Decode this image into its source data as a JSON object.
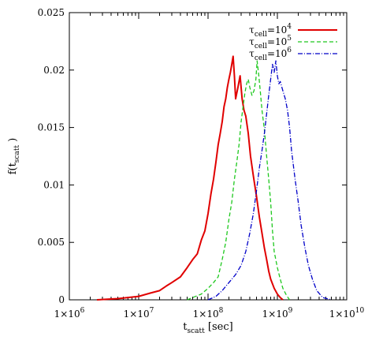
{
  "chart_data": {
    "type": "line",
    "title": "",
    "xlabel": {
      "main": "t",
      "sub": "scatt",
      "rest": " [sec]"
    },
    "ylabel": {
      "main": "f(t",
      "sub": "scatt",
      "rest": " )"
    },
    "x_scale": "log",
    "xlim": [
      1000000,
      10000000000
    ],
    "ylim": [
      0,
      0.025
    ],
    "grid": false,
    "legend_position": "top-right",
    "x_ticks": [
      {
        "base": "1×10",
        "exp": "6"
      },
      {
        "base": "1×10",
        "exp": "7"
      },
      {
        "base": "1×10",
        "exp": "8"
      },
      {
        "base": "1×10",
        "exp": "9"
      },
      {
        "base": "1×10",
        "exp": "10"
      }
    ],
    "y_ticks": [
      "0",
      "0.005",
      "0.01",
      "0.015",
      "0.02",
      "0.025"
    ],
    "y_tick_values": [
      0,
      0.005,
      0.01,
      0.015,
      0.02,
      0.025
    ],
    "series": [
      {
        "name": "τcell=10^4",
        "legend": {
          "tau": "τ",
          "sub": "cell",
          "eq": "=10",
          "exp": "4"
        },
        "color": "#e00000",
        "dash": "",
        "points": [
          [
            2500000,
            0.0
          ],
          [
            5000000,
            0.0001
          ],
          [
            10000000,
            0.0003
          ],
          [
            15000000,
            0.0006
          ],
          [
            20000000,
            0.0008
          ],
          [
            25000000,
            0.0012
          ],
          [
            30000000,
            0.0015
          ],
          [
            40000000,
            0.002
          ],
          [
            50000000,
            0.0028
          ],
          [
            60000000,
            0.0035
          ],
          [
            70000000,
            0.004
          ],
          [
            80000000,
            0.0052
          ],
          [
            90000000,
            0.006
          ],
          [
            100000000,
            0.0075
          ],
          [
            110000000,
            0.0092
          ],
          [
            120000000,
            0.0105
          ],
          [
            130000000,
            0.012
          ],
          [
            140000000,
            0.0135
          ],
          [
            150000000,
            0.0145
          ],
          [
            160000000,
            0.0155
          ],
          [
            170000000,
            0.0168
          ],
          [
            180000000,
            0.0175
          ],
          [
            190000000,
            0.0185
          ],
          [
            200000000,
            0.0192
          ],
          [
            210000000,
            0.0198
          ],
          [
            220000000,
            0.0205
          ],
          [
            230000000,
            0.0212
          ],
          [
            240000000,
            0.0195
          ],
          [
            250000000,
            0.0175
          ],
          [
            270000000,
            0.0185
          ],
          [
            290000000,
            0.0195
          ],
          [
            310000000,
            0.0175
          ],
          [
            330000000,
            0.0165
          ],
          [
            350000000,
            0.016
          ],
          [
            380000000,
            0.0145
          ],
          [
            410000000,
            0.0125
          ],
          [
            450000000,
            0.0108
          ],
          [
            500000000,
            0.009
          ],
          [
            550000000,
            0.0072
          ],
          [
            600000000,
            0.0058
          ],
          [
            650000000,
            0.0045
          ],
          [
            700000000,
            0.0035
          ],
          [
            750000000,
            0.0025
          ],
          [
            800000000,
            0.0018
          ],
          [
            900000000,
            0.001
          ],
          [
            1000000000,
            0.0005
          ],
          [
            1100000000,
            0.0002
          ],
          [
            1200000000,
            0.0
          ]
        ]
      },
      {
        "name": "τcell=10^5",
        "legend": {
          "tau": "τ",
          "sub": "cell",
          "eq": "=10",
          "exp": "5"
        },
        "color": "#1ec81e",
        "dash": "5,3",
        "points": [
          [
            50000000,
            0.0
          ],
          [
            60000000,
            0.0002
          ],
          [
            80000000,
            0.0005
          ],
          [
            100000000,
            0.001
          ],
          [
            120000000,
            0.0015
          ],
          [
            140000000,
            0.002
          ],
          [
            160000000,
            0.0035
          ],
          [
            180000000,
            0.005
          ],
          [
            200000000,
            0.007
          ],
          [
            220000000,
            0.0085
          ],
          [
            240000000,
            0.0105
          ],
          [
            260000000,
            0.012
          ],
          [
            280000000,
            0.0135
          ],
          [
            300000000,
            0.0155
          ],
          [
            320000000,
            0.0168
          ],
          [
            340000000,
            0.018
          ],
          [
            360000000,
            0.0188
          ],
          [
            380000000,
            0.0192
          ],
          [
            400000000,
            0.0185
          ],
          [
            430000000,
            0.0178
          ],
          [
            460000000,
            0.0182
          ],
          [
            490000000,
            0.0192
          ],
          [
            510000000,
            0.0208
          ],
          [
            540000000,
            0.0195
          ],
          [
            570000000,
            0.018
          ],
          [
            600000000,
            0.0165
          ],
          [
            650000000,
            0.0148
          ],
          [
            700000000,
            0.0125
          ],
          [
            750000000,
            0.0105
          ],
          [
            800000000,
            0.0085
          ],
          [
            850000000,
            0.006
          ],
          [
            900000000,
            0.0042
          ],
          [
            1000000000,
            0.0028
          ],
          [
            1100000000,
            0.0018
          ],
          [
            1200000000,
            0.001
          ],
          [
            1350000000,
            0.0004
          ],
          [
            1500000000,
            0.0
          ]
        ]
      },
      {
        "name": "τcell=10^6",
        "legend": {
          "tau": "τ",
          "sub": "cell",
          "eq": "=10",
          "exp": "6"
        },
        "color": "#0000c8",
        "dash": "6,2,1,2",
        "points": [
          [
            100000000,
            0.0
          ],
          [
            130000000,
            0.0003
          ],
          [
            160000000,
            0.0008
          ],
          [
            200000000,
            0.0015
          ],
          [
            250000000,
            0.0022
          ],
          [
            300000000,
            0.003
          ],
          [
            350000000,
            0.0042
          ],
          [
            400000000,
            0.0058
          ],
          [
            450000000,
            0.0075
          ],
          [
            500000000,
            0.0095
          ],
          [
            550000000,
            0.0115
          ],
          [
            600000000,
            0.013
          ],
          [
            650000000,
            0.0145
          ],
          [
            700000000,
            0.0162
          ],
          [
            750000000,
            0.0178
          ],
          [
            800000000,
            0.0192
          ],
          [
            850000000,
            0.0205
          ],
          [
            900000000,
            0.0198
          ],
          [
            950000000,
            0.0208
          ],
          [
            1000000000,
            0.0195
          ],
          [
            1050000000,
            0.0188
          ],
          [
            1100000000,
            0.019
          ],
          [
            1200000000,
            0.0182
          ],
          [
            1300000000,
            0.0175
          ],
          [
            1400000000,
            0.0165
          ],
          [
            1500000000,
            0.015
          ],
          [
            1600000000,
            0.013
          ],
          [
            1800000000,
            0.0105
          ],
          [
            2000000000,
            0.0085
          ],
          [
            2200000000,
            0.0065
          ],
          [
            2500000000,
            0.0045
          ],
          [
            2800000000,
            0.003
          ],
          [
            3200000000,
            0.0018
          ],
          [
            3700000000,
            0.0008
          ],
          [
            4500000000,
            0.0002
          ],
          [
            6000000000,
            0.0
          ]
        ]
      }
    ]
  }
}
